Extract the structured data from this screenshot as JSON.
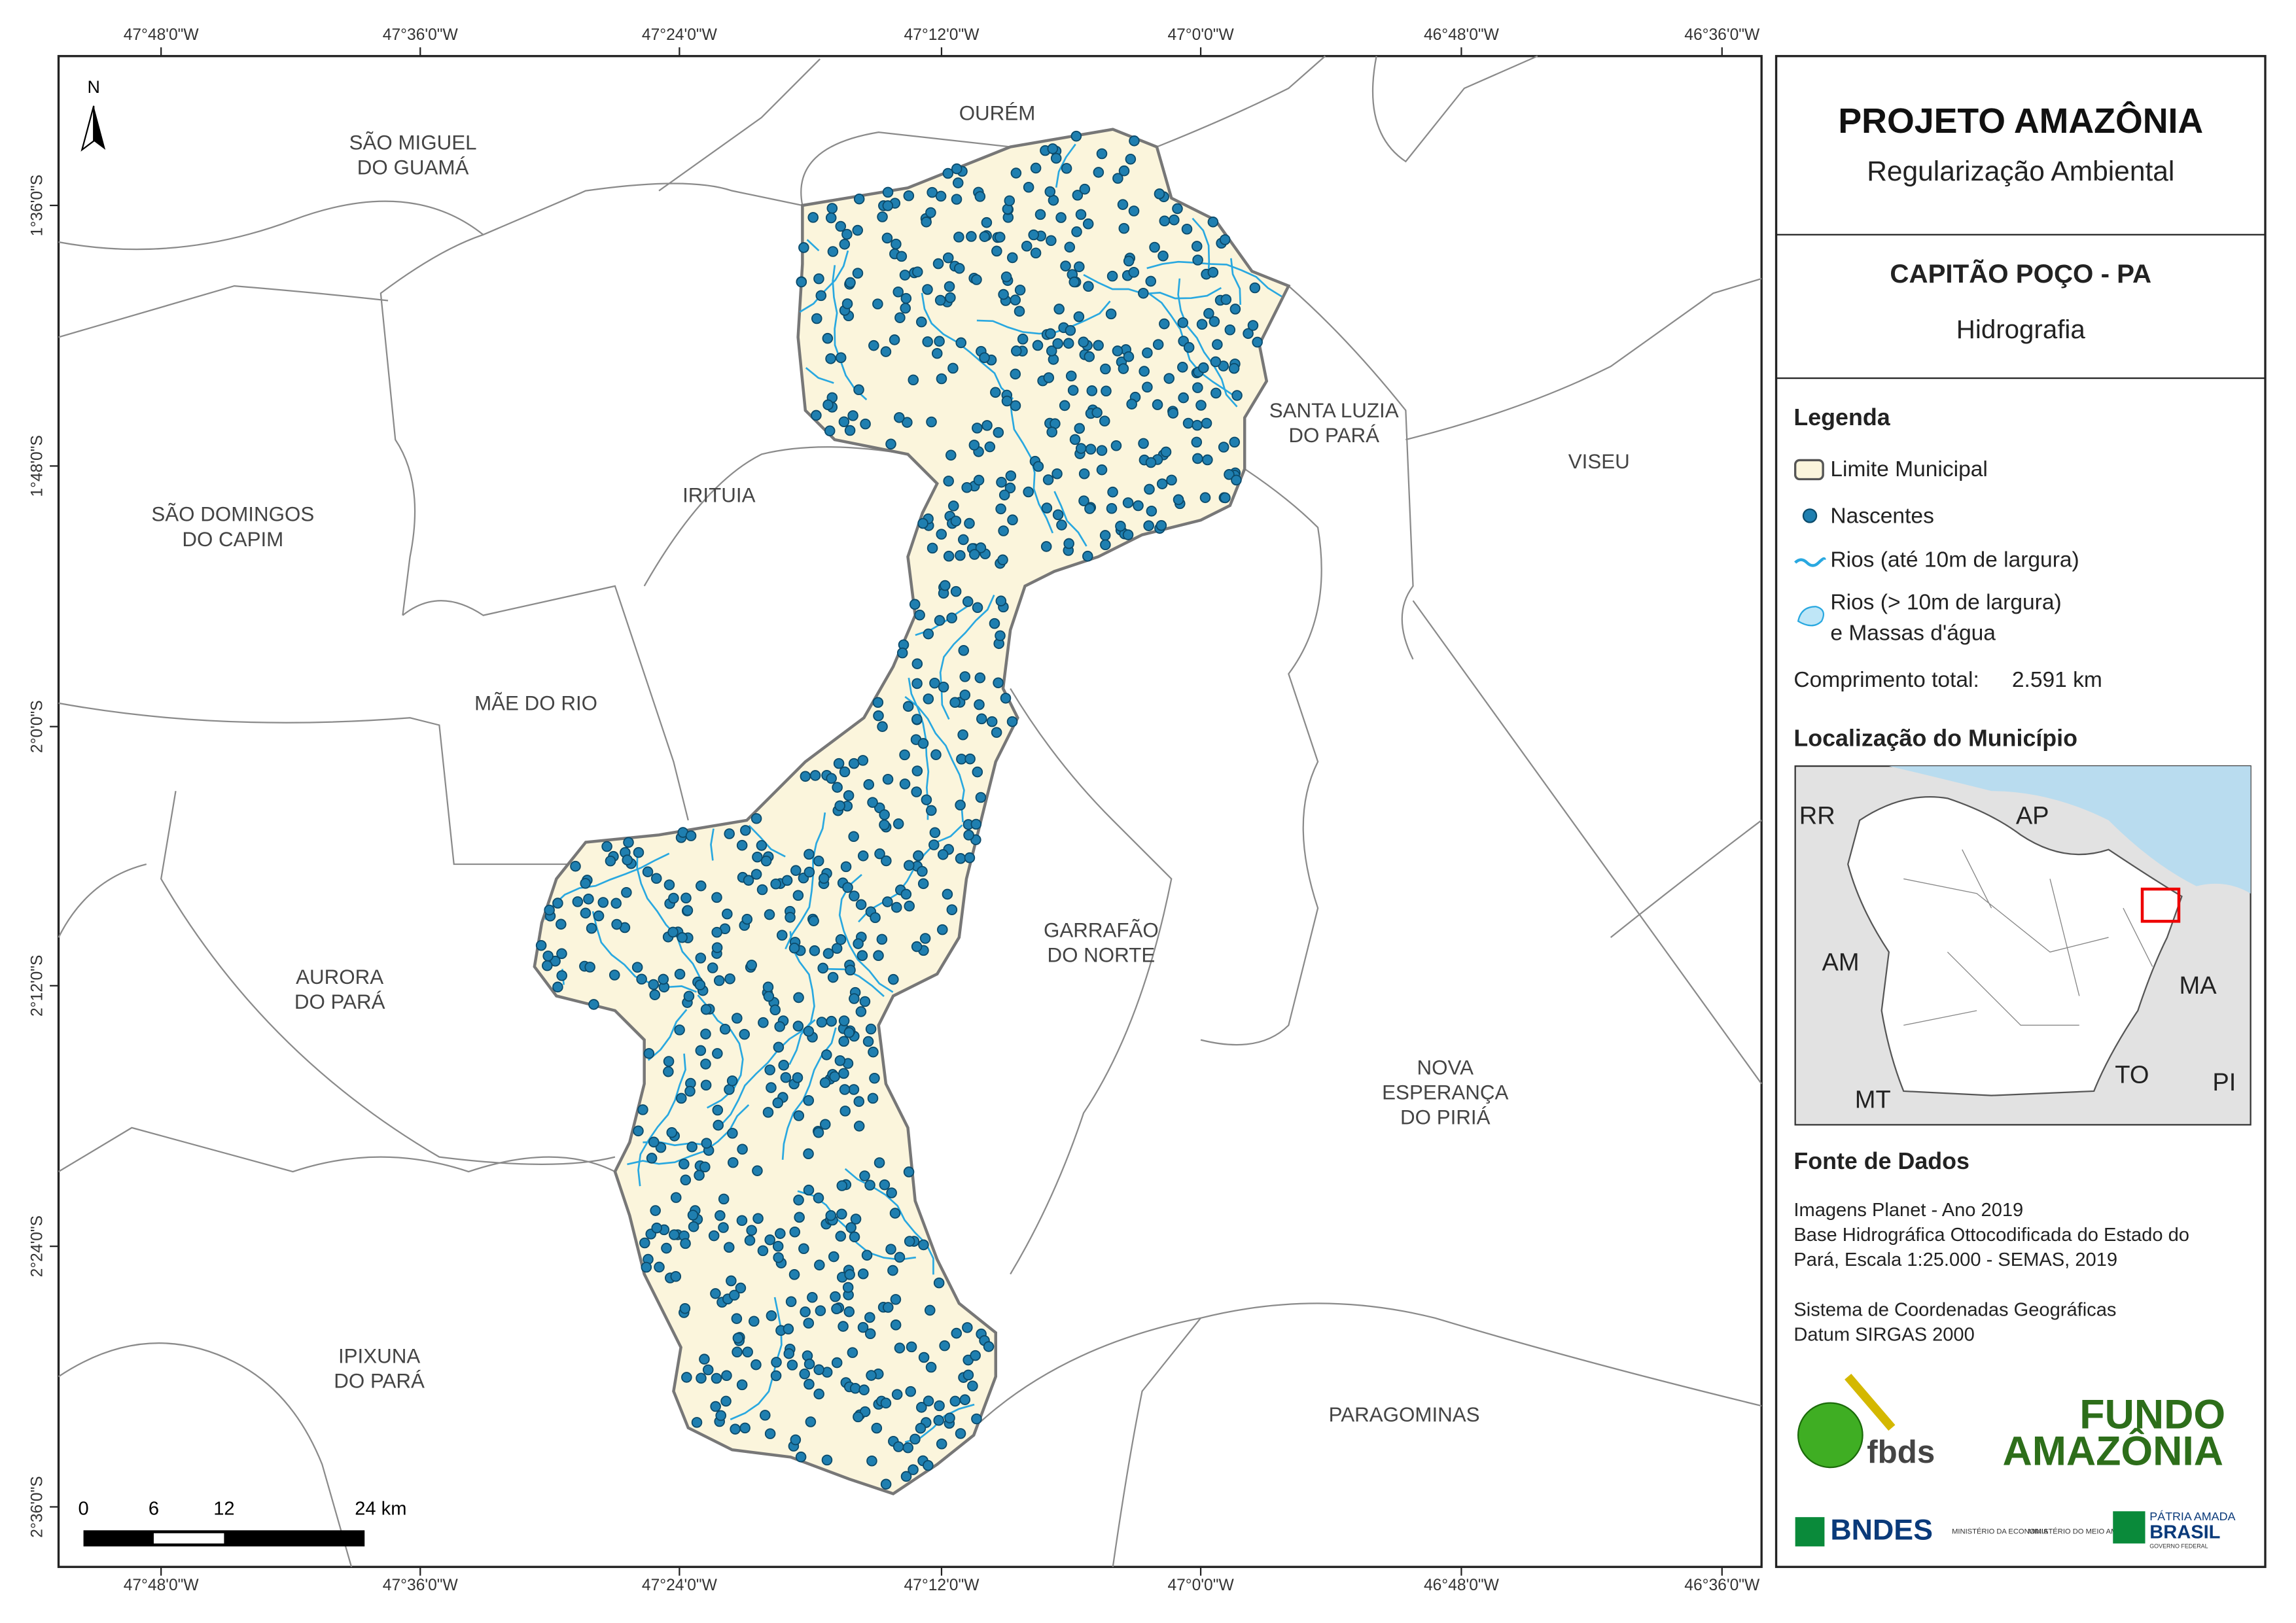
{
  "map": {
    "north": "N",
    "top_coords": [
      "47°48'0\"W",
      "47°36'0\"W",
      "47°24'0\"W",
      "47°12'0\"W",
      "47°0'0\"W",
      "46°48'0\"W",
      "46°36'0\"W"
    ],
    "bottom_coords": [
      "47°48'0\"W",
      "47°36'0\"W",
      "47°24'0\"W",
      "47°12'0\"W",
      "47°0'0\"W",
      "46°48'0\"W",
      "46°36'0\"W"
    ],
    "left_coords": [
      "1°36'0\"S",
      "1°48'0\"S",
      "2°0'0\"S",
      "2°12'0\"S",
      "2°24'0\"S",
      "2°36'0\"S"
    ],
    "municipalities": [
      [
        "SÃO MIGUEL",
        "DO GUAMÁ"
      ],
      [
        "OURÉM"
      ],
      [
        "SANTA LUZIA",
        "DO PARÁ"
      ],
      [
        "VISEU"
      ],
      [
        "IRITUIA"
      ],
      [
        "SÃO DOMINGOS",
        "DO CAPIM"
      ],
      [
        "MÃE DO RIO"
      ],
      [
        "GARRAFÃO",
        "DO NORTE"
      ],
      [
        "AURORA",
        "DO PARÁ"
      ],
      [
        "NOVA",
        "ESPERANÇA",
        "DO PIRIÁ"
      ],
      [
        "IPIXUNA",
        "DO PARÁ"
      ],
      [
        "PARAGOMINAS"
      ]
    ],
    "scale_labels": [
      "0",
      "6",
      "12",
      "24 km"
    ]
  },
  "panel": {
    "title": "PROJETO AMAZÔNIA",
    "subtitle": "Regularização Ambiental",
    "municipality": "CAPITÃO POÇO - PA",
    "theme": "Hidrografia",
    "legend": {
      "title": "Legenda",
      "items": [
        "Limite Municipal",
        "Nascentes",
        "Rios (até 10m de largura)",
        "Rios (> 10m de largura)",
        "e Massas d'água"
      ],
      "total_label": "Comprimento total:",
      "total_value": "2.591 km"
    },
    "location": {
      "title": "Localização do Município",
      "states": [
        "RR",
        "AP",
        "AM",
        "MA",
        "TO",
        "MT",
        "PI"
      ]
    },
    "sources": {
      "title": "Fonte de Dados",
      "lines": [
        "Imagens Planet - Ano 2019",
        "Base Hidrográfica Ottocodificada do Estado do",
        "Pará, Escala 1:25.000 - SEMAS, 2019",
        "Sistema de Coordenadas Geográficas",
        "Datum SIRGAS 2000"
      ]
    },
    "logos": {
      "fbds": "fbds",
      "fundo_1": "FUNDO",
      "fundo_2": "AMAZÔNIA",
      "bndes": "BNDES",
      "min_1": "MINISTÉRIO DA ECONOMIA",
      "min_2": "MINISTÉRIO DO MEIO AMBIENTE",
      "patria_1": "PÁTRIA AMADA",
      "patria_2": "BRASIL",
      "gov": "GOVERNO FEDERAL"
    }
  }
}
